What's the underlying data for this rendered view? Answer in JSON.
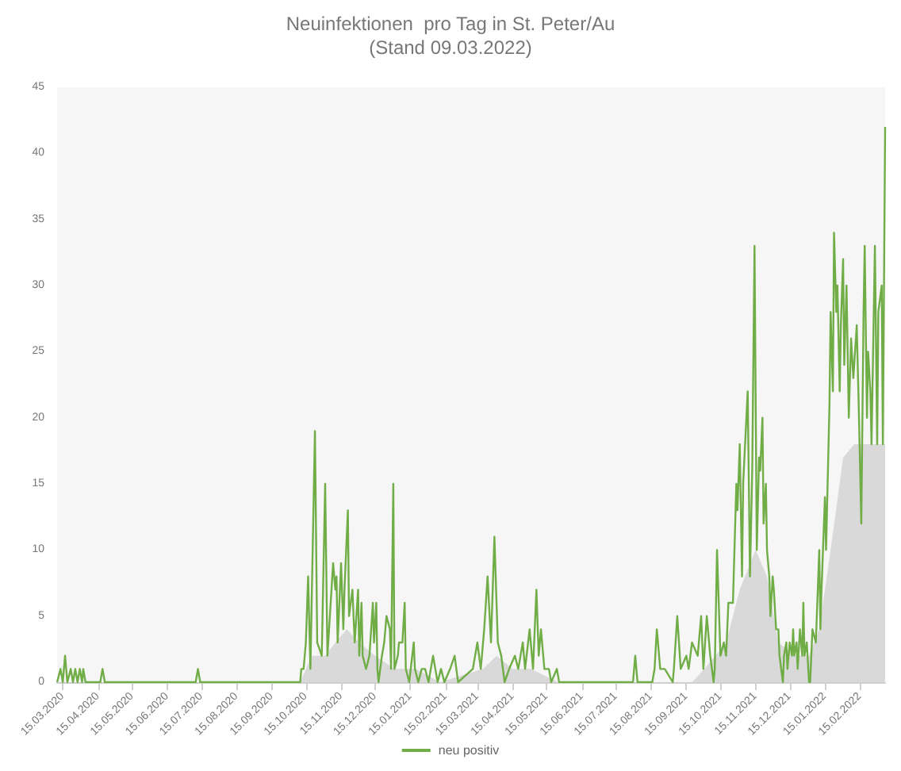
{
  "chart_data": {
    "type": "line",
    "title": "Neuinfektionen  pro Tag in St. Peter/Au",
    "subtitle": "(Stand 09.03.2022)",
    "xlim": [
      "2020-03-10",
      "2022-03-09"
    ],
    "xticks": [
      {
        "value": "2020-03-15",
        "label": "15.03.2020"
      },
      {
        "value": "2020-04-15",
        "label": "15.04.2020"
      },
      {
        "value": "2020-05-15",
        "label": "15.05.2020"
      },
      {
        "value": "2020-06-15",
        "label": "15.06.2020"
      },
      {
        "value": "2020-07-15",
        "label": "15.07.2020"
      },
      {
        "value": "2020-08-15",
        "label": "15.08.2020"
      },
      {
        "value": "2020-09-15",
        "label": "15.09.2020"
      },
      {
        "value": "2020-10-15",
        "label": "15.10.2020"
      },
      {
        "value": "2020-11-15",
        "label": "15.11.2020"
      },
      {
        "value": "2020-12-15",
        "label": "15.12.2020"
      },
      {
        "value": "2021-01-15",
        "label": "15.01.2021"
      },
      {
        "value": "2021-02-15",
        "label": "15.02.2021"
      },
      {
        "value": "2021-03-15",
        "label": "15.03.2021"
      },
      {
        "value": "2021-04-15",
        "label": "15.04.2021"
      },
      {
        "value": "2021-05-15",
        "label": "15.05.2021"
      },
      {
        "value": "2021-06-15",
        "label": "15.06.2021"
      },
      {
        "value": "2021-07-15",
        "label": "15.07.2021"
      },
      {
        "value": "2021-08-15",
        "label": "15.08.2021"
      },
      {
        "value": "2021-09-15",
        "label": "15.09.2021"
      },
      {
        "value": "2021-10-15",
        "label": "15.10.2021"
      },
      {
        "value": "2021-11-15",
        "label": "15.11.2021"
      },
      {
        "value": "2021-12-15",
        "label": "15.12.2021"
      },
      {
        "value": "2022-01-15",
        "label": "15.01.2022"
      },
      {
        "value": "2022-02-15",
        "label": "15.02.2022"
      }
    ],
    "ylim": [
      0,
      45
    ],
    "yticks": [
      0,
      5,
      10,
      15,
      20,
      25,
      30,
      35,
      40,
      45
    ],
    "grid": false,
    "legend": "bottom",
    "marker": "none",
    "line_style": "solid",
    "series": [
      {
        "type": "area",
        "color": "#d9d9d9",
        "x": [
          "2020-10-10",
          "2020-10-20",
          "2020-11-01",
          "2020-11-10",
          "2020-11-20",
          "2020-12-01",
          "2020-12-15",
          "2021-01-01",
          "2021-01-20",
          "2021-02-10",
          "2021-03-20",
          "2021-04-01",
          "2021-04-15",
          "2021-05-01",
          "2021-05-25",
          "2021-09-20",
          "2021-10-01",
          "2021-10-20",
          "2021-11-01",
          "2021-11-15",
          "2021-11-25",
          "2021-12-05",
          "2021-12-20",
          "2022-01-01",
          "2022-01-10",
          "2022-01-20",
          "2022-01-31",
          "2022-02-10",
          "2022-02-20",
          "2022-03-09"
        ],
        "values": [
          0,
          2,
          2,
          3,
          4,
          3,
          2,
          1,
          1,
          0,
          1,
          2,
          1,
          1,
          0,
          0,
          1,
          3,
          7,
          10,
          8,
          3,
          2,
          2,
          4,
          10,
          17,
          18,
          18,
          18
        ]
      },
      {
        "name": "neu positiv",
        "color": "#70ad47",
        "x": [
          "2020-03-10",
          "2020-03-13",
          "2020-03-15",
          "2020-03-17",
          "2020-03-19",
          "2020-03-22",
          "2020-03-24",
          "2020-03-26",
          "2020-03-28",
          "2020-03-30",
          "2020-04-01",
          "2020-04-02",
          "2020-04-04",
          "2020-04-17",
          "2020-04-19",
          "2020-04-21",
          "2020-07-10",
          "2020-07-12",
          "2020-07-14",
          "2020-10-10",
          "2020-10-11",
          "2020-10-13",
          "2020-10-15",
          "2020-10-17",
          "2020-10-19",
          "2020-10-23",
          "2020-10-25",
          "2020-10-29",
          "2020-11-01",
          "2020-11-03",
          "2020-11-08",
          "2020-11-10",
          "2020-11-11",
          "2020-11-12",
          "2020-11-15",
          "2020-11-17",
          "2020-11-18",
          "2020-11-21",
          "2020-11-22",
          "2020-11-25",
          "2020-11-27",
          "2020-11-30",
          "2020-12-01",
          "2020-12-03",
          "2020-12-04",
          "2020-12-07",
          "2020-12-10",
          "2020-12-13",
          "2020-12-14",
          "2020-12-16",
          "2020-12-17",
          "2020-12-18",
          "2020-12-21",
          "2020-12-23",
          "2020-12-25",
          "2020-12-28",
          "2020-12-29",
          "2020-12-31",
          "2021-01-01",
          "2021-01-04",
          "2021-01-05",
          "2021-01-08",
          "2021-01-10",
          "2021-01-11",
          "2021-01-14",
          "2021-01-18",
          "2021-01-19",
          "2021-01-22",
          "2021-01-25",
          "2021-01-28",
          "2021-01-31",
          "2021-02-04",
          "2021-02-06",
          "2021-02-08",
          "2021-02-11",
          "2021-02-14",
          "2021-02-19",
          "2021-02-23",
          "2021-02-26",
          "2021-03-11",
          "2021-03-15",
          "2021-03-18",
          "2021-03-21",
          "2021-03-24",
          "2021-03-27",
          "2021-03-30",
          "2021-04-02",
          "2021-04-05",
          "2021-04-08",
          "2021-04-12",
          "2021-04-17",
          "2021-04-20",
          "2021-04-24",
          "2021-04-26",
          "2021-04-30",
          "2021-05-03",
          "2021-05-06",
          "2021-05-08",
          "2021-05-10",
          "2021-05-13",
          "2021-05-17",
          "2021-05-19",
          "2021-05-24",
          "2021-05-26",
          "2021-07-30",
          "2021-08-01",
          "2021-08-03",
          "2021-08-16",
          "2021-08-18",
          "2021-08-20",
          "2021-08-23",
          "2021-08-27",
          "2021-09-03",
          "2021-09-04",
          "2021-09-07",
          "2021-09-10",
          "2021-09-15",
          "2021-09-17",
          "2021-09-20",
          "2021-09-25",
          "2021-09-28",
          "2021-09-30",
          "2021-10-03",
          "2021-10-06",
          "2021-10-09",
          "2021-10-10",
          "2021-10-12",
          "2021-10-15",
          "2021-10-18",
          "2021-10-20",
          "2021-10-22",
          "2021-10-24",
          "2021-10-26",
          "2021-10-29",
          "2021-10-30",
          "2021-11-01",
          "2021-11-03",
          "2021-11-04",
          "2021-11-08",
          "2021-11-09",
          "2021-11-10",
          "2021-11-12",
          "2021-11-14",
          "2021-11-16",
          "2021-11-18",
          "2021-11-19",
          "2021-11-21",
          "2021-11-22",
          "2021-11-24",
          "2021-11-25",
          "2021-11-27",
          "2021-11-28",
          "2021-11-30",
          "2021-12-01",
          "2021-12-03",
          "2021-12-05",
          "2021-12-06",
          "2021-12-09",
          "2021-12-10",
          "2021-12-12",
          "2021-12-13",
          "2021-12-15",
          "2021-12-17",
          "2021-12-18",
          "2021-12-19",
          "2021-12-21",
          "2021-12-22",
          "2021-12-24",
          "2021-12-26",
          "2021-12-27",
          "2021-12-28",
          "2021-12-30",
          "2022-01-01",
          "2022-01-02",
          "2022-01-04",
          "2022-01-07",
          "2022-01-10",
          "2022-01-11",
          "2022-01-12",
          "2022-01-15",
          "2022-01-16",
          "2022-01-19",
          "2022-01-20",
          "2022-01-22",
          "2022-01-23",
          "2022-01-25",
          "2022-01-26",
          "2022-01-28",
          "2022-01-29",
          "2022-01-31",
          "2022-02-01",
          "2022-02-03",
          "2022-02-05",
          "2022-02-07",
          "2022-02-09",
          "2022-02-12",
          "2022-02-14",
          "2022-02-16",
          "2022-02-18",
          "2022-02-19",
          "2022-02-21",
          "2022-02-22",
          "2022-02-24",
          "2022-02-25",
          "2022-02-28",
          "2022-03-02",
          "2022-03-03",
          "2022-03-06",
          "2022-03-07",
          "2022-03-09"
        ],
        "values": [
          0,
          1,
          0,
          2,
          0,
          1,
          0,
          1,
          0,
          1,
          0,
          1,
          0,
          0,
          1,
          0,
          0,
          1,
          0,
          0,
          1,
          1,
          3,
          8,
          1,
          19,
          3,
          2,
          15,
          2,
          9,
          7,
          8,
          3,
          9,
          4,
          7,
          13,
          5,
          7,
          3,
          7,
          2,
          6,
          2,
          1,
          2,
          6,
          3,
          6,
          1,
          0,
          2,
          3,
          5,
          4,
          1,
          15,
          1,
          2,
          3,
          3,
          6,
          1,
          0,
          3,
          1,
          0,
          1,
          1,
          0,
          2,
          1,
          0,
          1,
          0,
          1,
          2,
          0,
          1,
          3,
          1,
          4,
          8,
          3,
          11,
          3,
          2,
          0,
          1,
          2,
          1,
          3,
          1,
          4,
          1,
          7,
          2,
          4,
          1,
          1,
          0,
          1,
          0,
          0,
          2,
          0,
          0,
          1,
          4,
          1,
          1,
          0,
          1,
          5,
          1,
          2,
          1,
          3,
          2,
          5,
          1,
          5,
          2,
          0,
          1,
          10,
          2,
          3,
          2,
          6,
          6,
          6,
          15,
          13,
          18,
          8,
          15,
          22,
          15,
          8,
          16,
          33,
          10,
          17,
          16,
          20,
          12,
          15,
          10,
          8,
          5,
          8,
          7,
          4,
          4,
          2,
          0,
          2,
          3,
          1,
          3,
          2,
          4,
          2,
          3,
          1,
          4,
          2,
          6,
          2,
          3,
          0,
          0,
          4,
          3,
          10,
          4,
          7,
          14,
          10,
          21,
          28,
          22,
          34,
          28,
          30,
          22,
          27,
          32,
          24,
          30,
          20,
          26,
          23,
          27,
          20,
          12,
          28,
          33,
          20,
          25,
          22,
          18,
          33,
          18,
          28,
          30,
          18,
          42
        ]
      }
    ]
  }
}
